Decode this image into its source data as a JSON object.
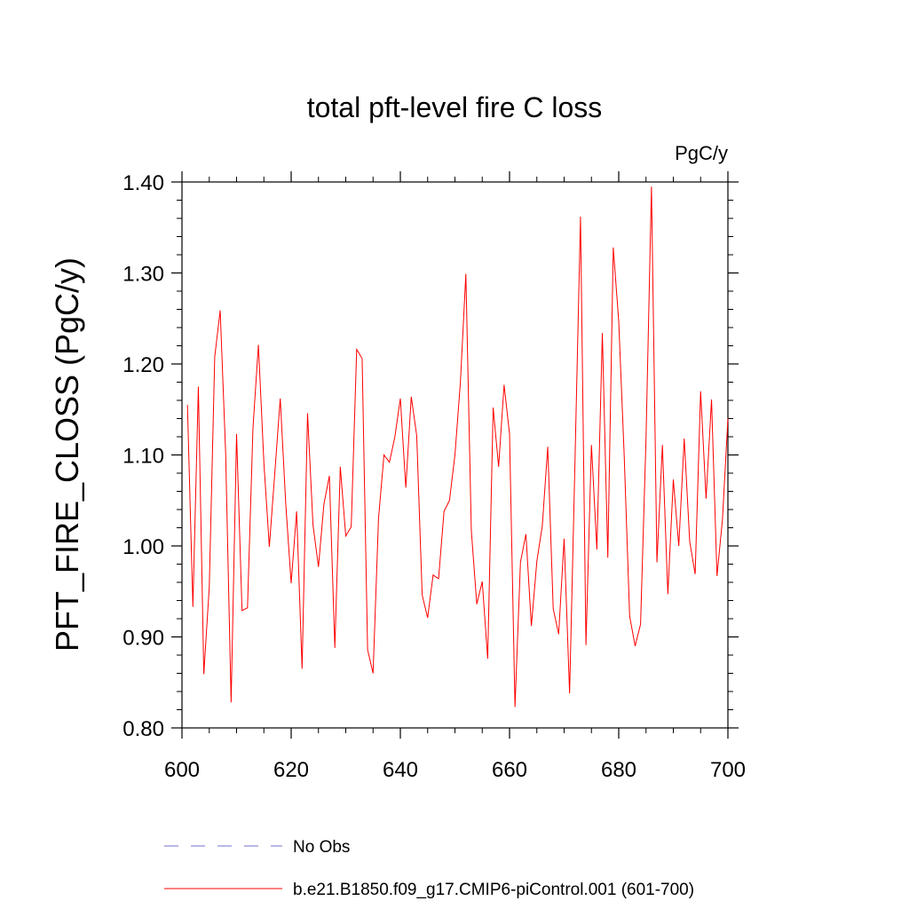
{
  "chart_data": {
    "type": "line",
    "title": "total pft-level fire C loss",
    "units_label": "PgC/y",
    "xlabel": "",
    "ylabel": "PFT_FIRE_CLOSS  (PgC/y)",
    "xlim": [
      600,
      700
    ],
    "ylim": [
      0.8,
      1.4
    ],
    "x_ticks": [
      600,
      620,
      640,
      660,
      680,
      700
    ],
    "x_tick_labels": [
      "600",
      "620",
      "640",
      "660",
      "680",
      "700"
    ],
    "y_ticks": [
      0.8,
      0.9,
      1.0,
      1.1,
      1.2,
      1.3,
      1.4
    ],
    "y_tick_labels": [
      "0.80",
      "0.90",
      "1.00",
      "1.10",
      "1.20",
      "1.30",
      "1.40"
    ],
    "grid": false,
    "legend_position": "bottom",
    "legend": [
      {
        "name": "No Obs",
        "color": "#7070d0",
        "style": "dashed"
      },
      {
        "name": "b.e21.B1850.f09_g17.CMIP6-piControl.001 (601-700)",
        "color": "#ff0000",
        "style": "solid"
      }
    ],
    "series": [
      {
        "name": "b.e21.B1850.f09_g17.CMIP6-piControl.001 (601-700)",
        "color": "#ff0000",
        "x": [
          601,
          602,
          603,
          604,
          605,
          606,
          607,
          608,
          609,
          610,
          611,
          612,
          613,
          614,
          615,
          616,
          617,
          618,
          619,
          620,
          621,
          622,
          623,
          624,
          625,
          626,
          627,
          628,
          629,
          630,
          631,
          632,
          633,
          634,
          635,
          636,
          637,
          638,
          639,
          640,
          641,
          642,
          643,
          644,
          645,
          646,
          647,
          648,
          649,
          650,
          651,
          652,
          653,
          654,
          655,
          656,
          657,
          658,
          659,
          660,
          661,
          662,
          663,
          664,
          665,
          666,
          667,
          668,
          669,
          670,
          671,
          672,
          673,
          674,
          675,
          676,
          677,
          678,
          679,
          680,
          681,
          682,
          683,
          684,
          685,
          686,
          687,
          688,
          689,
          690,
          691,
          692,
          693,
          694,
          695,
          696,
          697,
          698,
          699,
          700
        ],
        "values": [
          1.155,
          0.933,
          1.175,
          0.859,
          0.955,
          1.208,
          1.259,
          1.102,
          0.828,
          1.123,
          0.929,
          0.932,
          1.129,
          1.221,
          1.092,
          0.999,
          1.08,
          1.162,
          1.047,
          0.959,
          1.038,
          0.865,
          1.146,
          1.023,
          0.977,
          1.046,
          1.077,
          0.888,
          1.087,
          1.011,
          1.021,
          1.216,
          1.206,
          0.886,
          0.86,
          1.03,
          1.1,
          1.092,
          1.12,
          1.162,
          1.064,
          1.164,
          1.121,
          0.946,
          0.921,
          0.968,
          0.964,
          1.038,
          1.05,
          1.1,
          1.18,
          1.299,
          1.017,
          0.936,
          0.961,
          0.876,
          1.152,
          1.087,
          1.177,
          1.123,
          0.823,
          0.982,
          1.013,
          0.912,
          0.983,
          1.022,
          1.109,
          0.931,
          0.903,
          1.008,
          0.838,
          1.096,
          1.362,
          0.891,
          1.111,
          0.996,
          1.234,
          0.987,
          1.328,
          1.247,
          1.1,
          0.923,
          0.89,
          0.914,
          1.118,
          1.395,
          0.982,
          1.111,
          0.947,
          1.073,
          1.0,
          1.118,
          1.005,
          0.969,
          1.17,
          1.052,
          1.161,
          0.967,
          1.029,
          1.14
        ]
      }
    ]
  }
}
